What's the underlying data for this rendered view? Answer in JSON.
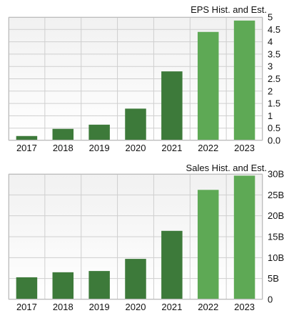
{
  "colors": {
    "historical": "#3d7a3a",
    "estimate": "#5ea955",
    "plot_bg_top": "#f1f1f1",
    "plot_bg_bottom": "#ffffff",
    "grid": "#cfcfcf"
  },
  "chart_data": [
    {
      "type": "bar",
      "title": "EPS Hist. and Est.",
      "categories": [
        "2017",
        "2018",
        "2019",
        "2020",
        "2021",
        "2022",
        "2023"
      ],
      "values": [
        0.18,
        0.47,
        0.64,
        1.29,
        2.8,
        4.4,
        4.86
      ],
      "estimate_from_index": 5,
      "ylim": [
        0,
        5
      ],
      "yticks": [
        0,
        0.5,
        1,
        1.5,
        2,
        2.5,
        3,
        3.5,
        4,
        4.5,
        5
      ],
      "ytick_labels": [
        "0.0",
        "0.5",
        "1",
        "1.5",
        "2",
        "2.5",
        "3",
        "3.5",
        "4",
        "4.5",
        "5"
      ],
      "grid": true,
      "xlabel": "",
      "ylabel": ""
    },
    {
      "type": "bar",
      "title": "Sales Hist. and Est.",
      "categories": [
        "2017",
        "2018",
        "2019",
        "2020",
        "2021",
        "2022",
        "2023"
      ],
      "values": [
        5.3,
        6.5,
        6.8,
        9.7,
        16.4,
        26.2,
        29.6
      ],
      "estimate_from_index": 5,
      "ylim": [
        0,
        30
      ],
      "yticks": [
        0,
        5,
        10,
        15,
        20,
        25,
        30
      ],
      "ytick_labels": [
        "0",
        "5B",
        "10B",
        "15B",
        "20B",
        "25B",
        "30B"
      ],
      "grid": true,
      "xlabel": "",
      "ylabel": ""
    }
  ]
}
